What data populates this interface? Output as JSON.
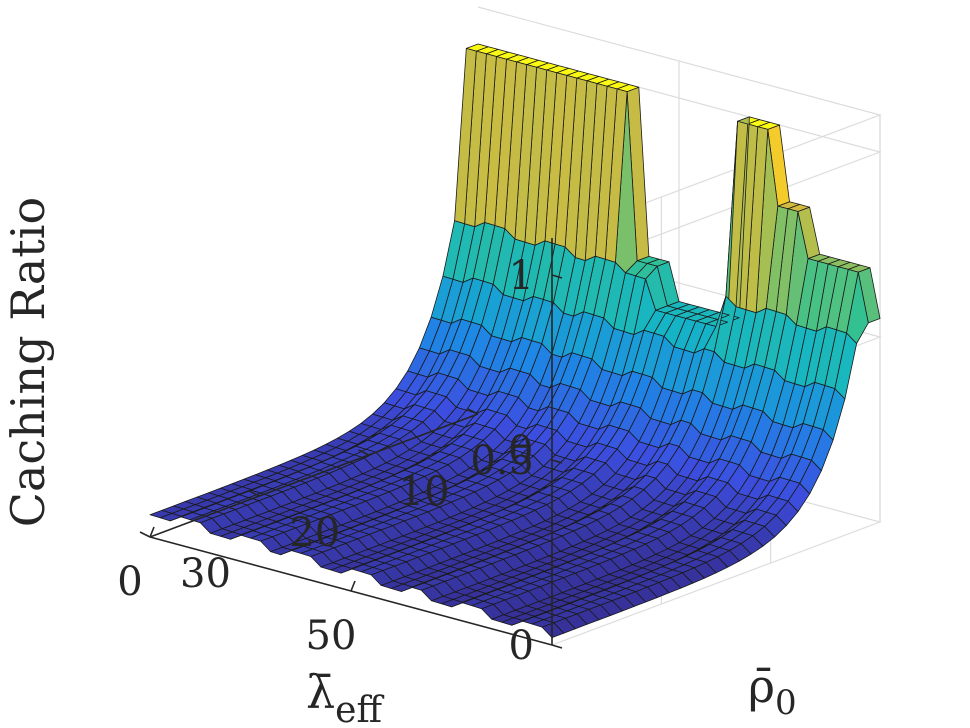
{
  "chart_data": {
    "type": "surface",
    "title": "",
    "zlabel": "Caching Ratio",
    "xlabel_main": "λ̄",
    "xlabel_sub": "eff",
    "ylabel_main": "ρ̄",
    "ylabel_sub": "0",
    "x_axis_name": "lambda_eff",
    "y_axis_name": "rho_0",
    "xlim": [
      0,
      100
    ],
    "ylim": [
      0,
      30
    ],
    "zlim": [
      0,
      1.1
    ],
    "x_ticks": [
      0,
      50
    ],
    "y_ticks": [
      0,
      10,
      20,
      30
    ],
    "z_ticks": [
      0,
      0.5,
      1
    ],
    "x_tick_labels": [
      "0",
      "50"
    ],
    "y_tick_labels": [
      "0",
      "10",
      "20",
      "30"
    ],
    "z_tick_labels": [
      "0",
      "0.5",
      "1"
    ],
    "grid": true,
    "colormap": "parula",
    "colormap_stops": [
      "#352a87",
      "#3c4ee0",
      "#1e88e5",
      "#15b5c5",
      "#35c18f",
      "#a7bf52",
      "#f0b833",
      "#f9f915"
    ],
    "x_samples": 40,
    "y_samples": 28,
    "description_of_values": "Caching ratio rises sharply as rho_0 approaches 0 and decreases roughly exponentially with rho_0; ratio plateaus at 1 for smallest rho_0; stepwise bands along lambda_eff.",
    "step_levels": [
      1.0,
      0.8,
      0.68,
      0.55,
      0.45
    ],
    "edge_profile_rho_small_z": 1.0,
    "edge_profile_rho_large_z": 0.02
  }
}
